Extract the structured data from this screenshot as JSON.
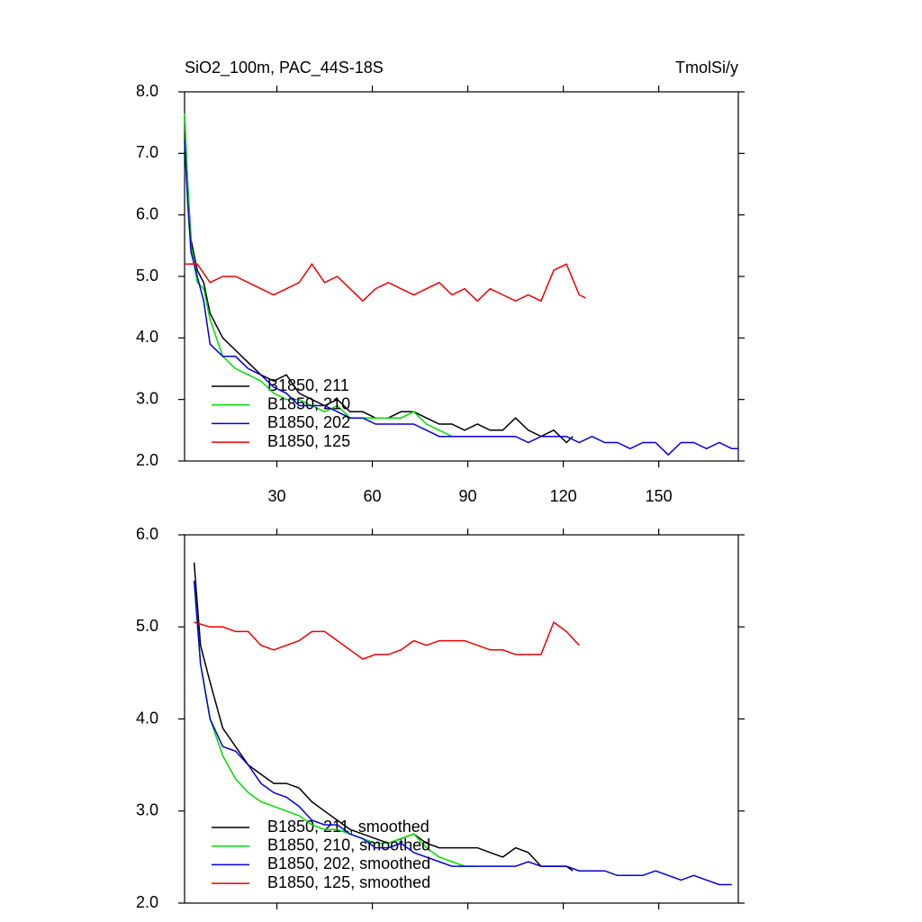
{
  "chart_data": [
    {
      "type": "line",
      "title": "SiO2_100m, PAC_44S-18S",
      "units": "TmolSi/y",
      "xlim": [
        1,
        175
      ],
      "ylim": [
        2,
        8
      ],
      "xticks": [
        30,
        60,
        90,
        120,
        150
      ],
      "show_xtick_labels": true,
      "yticks": [
        {
          "value": 2,
          "label": "2.0"
        },
        {
          "value": 3,
          "label": "3.0"
        },
        {
          "value": 4,
          "label": "4.0"
        },
        {
          "value": 5,
          "label": "5.0"
        },
        {
          "value": 6,
          "label": "6.0"
        },
        {
          "value": 7,
          "label": "7.0"
        },
        {
          "value": 8,
          "label": "8.0"
        }
      ],
      "series": [
        {
          "name": "B1850, 211",
          "color": "#000000",
          "x": [
            1,
            2,
            3,
            5,
            7,
            9,
            13,
            17,
            21,
            25,
            29,
            33,
            37,
            41,
            45,
            49,
            53,
            57,
            61,
            65,
            69,
            73,
            77,
            81,
            85,
            89,
            93,
            97,
            101,
            105,
            109,
            113,
            117,
            121,
            123
          ],
          "values": [
            7.6,
            6.5,
            5.6,
            5.1,
            4.9,
            4.4,
            4.0,
            3.8,
            3.6,
            3.4,
            3.3,
            3.4,
            3.1,
            3.0,
            2.9,
            3.0,
            2.8,
            2.8,
            2.7,
            2.7,
            2.8,
            2.8,
            2.7,
            2.6,
            2.6,
            2.5,
            2.6,
            2.5,
            2.5,
            2.7,
            2.5,
            2.4,
            2.5,
            2.3,
            2.4
          ]
        },
        {
          "name": "B1850, 210",
          "color": "#00dd00",
          "x": [
            1,
            2,
            3,
            5,
            7,
            9,
            13,
            17,
            21,
            25,
            29,
            33,
            37,
            41,
            45,
            49,
            53,
            57,
            61,
            65,
            69,
            73,
            77,
            81,
            85,
            89,
            93
          ],
          "values": [
            7.65,
            6.5,
            5.5,
            4.9,
            4.8,
            4.3,
            3.7,
            3.5,
            3.4,
            3.3,
            3.1,
            3.0,
            3.0,
            2.9,
            2.8,
            2.9,
            2.7,
            2.7,
            2.7,
            2.7,
            2.7,
            2.8,
            2.6,
            2.5,
            2.4,
            2.4,
            2.4
          ]
        },
        {
          "name": "B1850, 202",
          "color": "#0000dd",
          "x": [
            1,
            2,
            3,
            5,
            7,
            9,
            13,
            17,
            21,
            25,
            29,
            33,
            37,
            41,
            45,
            49,
            53,
            57,
            61,
            65,
            69,
            73,
            77,
            81,
            85,
            89,
            93,
            97,
            101,
            105,
            109,
            113,
            117,
            121,
            125,
            129,
            133,
            137,
            141,
            145,
            149,
            153,
            157,
            161,
            165,
            169,
            173,
            175
          ],
          "values": [
            7.2,
            6.2,
            5.4,
            5.0,
            4.6,
            3.9,
            3.7,
            3.7,
            3.5,
            3.4,
            3.2,
            3.1,
            2.9,
            2.9,
            2.9,
            2.8,
            2.7,
            2.7,
            2.6,
            2.6,
            2.6,
            2.6,
            2.5,
            2.4,
            2.4,
            2.4,
            2.4,
            2.4,
            2.4,
            2.4,
            2.3,
            2.4,
            2.4,
            2.4,
            2.3,
            2.4,
            2.3,
            2.3,
            2.2,
            2.3,
            2.3,
            2.1,
            2.3,
            2.3,
            2.2,
            2.3,
            2.2,
            2.2
          ]
        },
        {
          "name": "B1850, 125",
          "color": "#ee0000",
          "x": [
            1,
            5,
            9,
            13,
            17,
            21,
            25,
            29,
            33,
            37,
            41,
            45,
            49,
            53,
            57,
            61,
            65,
            69,
            73,
            77,
            81,
            85,
            89,
            93,
            97,
            101,
            105,
            109,
            113,
            117,
            121,
            125,
            127
          ],
          "values": [
            5.2,
            5.2,
            4.9,
            5.0,
            5.0,
            4.9,
            4.8,
            4.7,
            4.8,
            4.9,
            5.2,
            4.9,
            5.0,
            4.8,
            4.6,
            4.8,
            4.9,
            4.8,
            4.7,
            4.8,
            4.9,
            4.7,
            4.8,
            4.6,
            4.8,
            4.7,
            4.6,
            4.7,
            4.6,
            5.1,
            5.2,
            4.7,
            4.65
          ]
        }
      ]
    },
    {
      "type": "line",
      "xlim": [
        1,
        175
      ],
      "ylim": [
        2,
        6
      ],
      "xticks": [
        30,
        60,
        90,
        120,
        150
      ],
      "show_xtick_labels": false,
      "yticks": [
        {
          "value": 2,
          "label": "2.0"
        },
        {
          "value": 3,
          "label": "3.0"
        },
        {
          "value": 4,
          "label": "4.0"
        },
        {
          "value": 5,
          "label": "5.0"
        },
        {
          "value": 6,
          "label": "6.0"
        }
      ],
      "series": [
        {
          "name": "B1850, 211, smoothed",
          "color": "#000000",
          "x": [
            4,
            6,
            9,
            13,
            17,
            21,
            25,
            29,
            33,
            37,
            41,
            45,
            49,
            53,
            57,
            61,
            65,
            69,
            73,
            77,
            81,
            85,
            89,
            93,
            97,
            101,
            105,
            109,
            113,
            117,
            121,
            123
          ],
          "values": [
            5.7,
            4.8,
            4.4,
            3.9,
            3.7,
            3.5,
            3.4,
            3.3,
            3.3,
            3.25,
            3.1,
            3.0,
            2.9,
            2.8,
            2.75,
            2.7,
            2.65,
            2.7,
            2.75,
            2.65,
            2.6,
            2.6,
            2.6,
            2.6,
            2.55,
            2.5,
            2.6,
            2.55,
            2.4,
            2.4,
            2.4,
            2.35
          ]
        },
        {
          "name": "B1850, 210, smoothed",
          "color": "#00dd00",
          "x": [
            4,
            6,
            9,
            13,
            17,
            21,
            25,
            29,
            33,
            37,
            41,
            45,
            49,
            53,
            57,
            61,
            65,
            69,
            73,
            77,
            81,
            85,
            89,
            93
          ],
          "values": [
            5.5,
            4.6,
            4.0,
            3.6,
            3.35,
            3.2,
            3.1,
            3.05,
            3.0,
            2.95,
            2.85,
            2.8,
            2.8,
            2.75,
            2.7,
            2.65,
            2.65,
            2.7,
            2.75,
            2.6,
            2.5,
            2.45,
            2.4,
            2.4
          ]
        },
        {
          "name": "B1850, 202, smoothed",
          "color": "#0000dd",
          "x": [
            4,
            6,
            9,
            13,
            17,
            21,
            25,
            29,
            33,
            37,
            41,
            45,
            49,
            53,
            57,
            61,
            65,
            69,
            73,
            77,
            81,
            85,
            89,
            93,
            97,
            101,
            105,
            109,
            113,
            117,
            121,
            125,
            129,
            133,
            137,
            141,
            145,
            149,
            153,
            157,
            161,
            165,
            169,
            173
          ],
          "values": [
            5.5,
            4.6,
            4.0,
            3.7,
            3.65,
            3.5,
            3.3,
            3.2,
            3.15,
            3.05,
            2.9,
            2.85,
            2.85,
            2.75,
            2.7,
            2.6,
            2.6,
            2.65,
            2.55,
            2.5,
            2.45,
            2.4,
            2.4,
            2.4,
            2.4,
            2.4,
            2.4,
            2.45,
            2.4,
            2.4,
            2.4,
            2.35,
            2.35,
            2.35,
            2.3,
            2.3,
            2.3,
            2.35,
            2.3,
            2.25,
            2.3,
            2.25,
            2.2,
            2.2
          ]
        },
        {
          "name": "B1850, 125, smoothed",
          "color": "#ee0000",
          "x": [
            4,
            9,
            13,
            17,
            21,
            25,
            29,
            33,
            37,
            41,
            45,
            49,
            53,
            57,
            61,
            65,
            69,
            73,
            77,
            81,
            85,
            89,
            93,
            97,
            101,
            105,
            109,
            113,
            117,
            121,
            125
          ],
          "values": [
            5.05,
            5.0,
            5.0,
            4.95,
            4.95,
            4.8,
            4.75,
            4.8,
            4.85,
            4.95,
            4.95,
            4.85,
            4.75,
            4.65,
            4.7,
            4.7,
            4.75,
            4.85,
            4.8,
            4.85,
            4.85,
            4.85,
            4.8,
            4.75,
            4.75,
            4.7,
            4.7,
            4.7,
            5.05,
            4.95,
            4.8
          ]
        }
      ]
    }
  ]
}
